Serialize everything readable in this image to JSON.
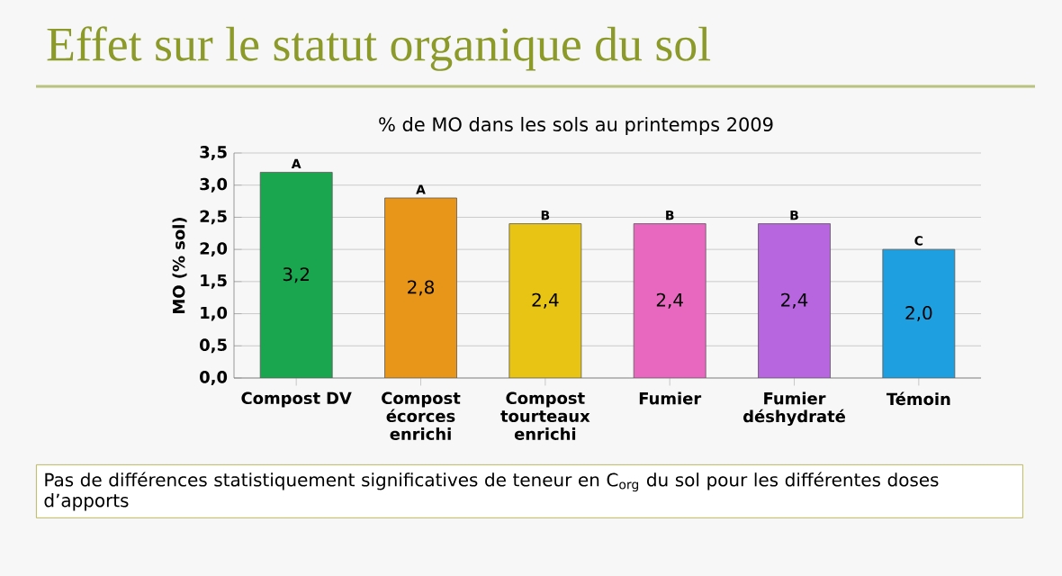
{
  "chart_data": {
    "type": "bar",
    "title": "Effet sur le statut organique du sol",
    "subtitle": "% de MO dans les sols au printemps 2009",
    "ylabel": "MO (% sol)",
    "categories": [
      "Compost DV",
      "Compost écorces enrichi",
      "Compost tourteaux enrichi",
      "Fumier",
      "Fumier déshydraté",
      "Témoin"
    ],
    "values": [
      3.2,
      2.8,
      2.4,
      2.4,
      2.4,
      2.0
    ],
    "value_labels": [
      "3,2",
      "2,8",
      "2,4",
      "2,4",
      "2,4",
      "2,0"
    ],
    "colors": [
      "#1aa64f",
      "#e8961a",
      "#e8c414",
      "#e868c0",
      "#b865e0",
      "#1ea0e0"
    ],
    "ylim": [
      0,
      3.5
    ],
    "yticks": [
      {
        "value": 0,
        "label": "0,0"
      },
      {
        "value": 0.5,
        "label": "0,5"
      },
      {
        "value": 1,
        "label": "1,0"
      },
      {
        "value": 1.5,
        "label": "1,5"
      },
      {
        "value": 2,
        "label": "2,0"
      },
      {
        "value": 2.5,
        "label": "2,5"
      },
      {
        "value": 3,
        "label": "3,0"
      },
      {
        "value": 3.5,
        "label": "3,5"
      }
    ],
    "grid": "y",
    "annotations": [
      {
        "text": "A",
        "x": "Compost DV",
        "y": 3.2
      },
      {
        "text": "A",
        "x": "Compost écorces enrichi",
        "y": 2.8
      },
      {
        "text": "B",
        "x": "Compost tourteaux enrichi",
        "y": 2.4
      },
      {
        "text": "B",
        "x": "Fumier",
        "y": 2.4
      },
      {
        "text": "B",
        "x": "Fumier déshydraté",
        "y": 2.4
      },
      {
        "text": "C",
        "x": "Témoin",
        "y": 2.0
      },
      "Pas de différences statistiquement significatives de teneur en C$_{org}$ du sol pour les différentes doses d’apports"
    ]
  }
}
